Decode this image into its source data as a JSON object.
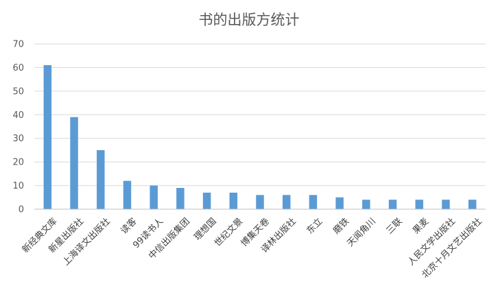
{
  "chart_data": {
    "type": "bar",
    "title": "书的出版方统计",
    "xlabel": "",
    "ylabel": "",
    "ylim": [
      0,
      70
    ],
    "yticks": [
      0,
      10,
      20,
      30,
      40,
      50,
      60,
      70
    ],
    "grid": true,
    "legend": "none",
    "bar_color": "#5b9bd5",
    "categories": [
      "新经典文库",
      "新星出版社",
      "上海译文出版社",
      "读客",
      "99读书人",
      "中信出版集团",
      "理想国",
      "世纪文景",
      "博集天卷",
      "译林出版社",
      "东立",
      "磨铁",
      "天闻角川",
      "三联",
      "果麦",
      "人民文学出版社",
      "北京十月文艺出版社"
    ],
    "values": [
      61,
      39,
      25,
      12,
      10,
      9,
      7,
      7,
      6,
      6,
      6,
      5,
      4,
      4,
      4,
      4,
      4
    ]
  }
}
